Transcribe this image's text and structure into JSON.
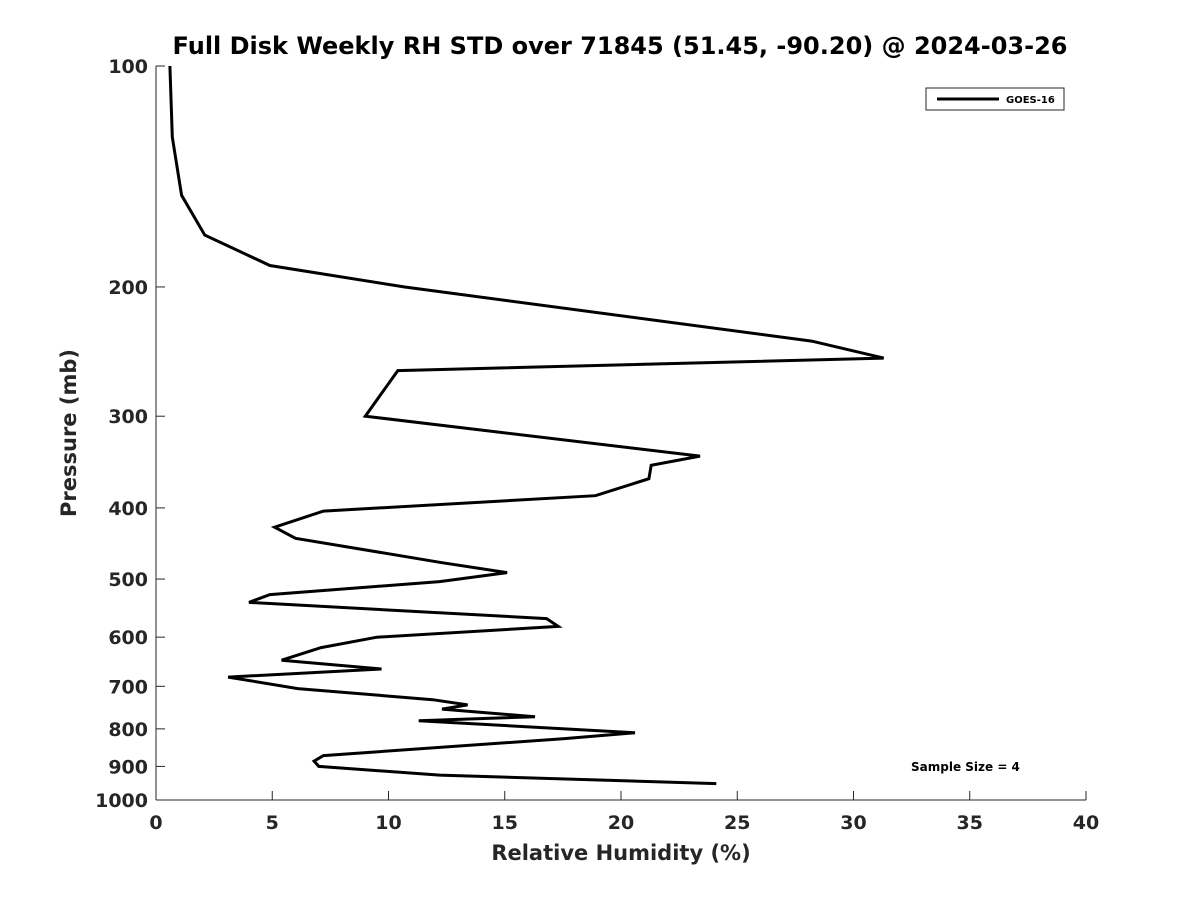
{
  "chart_data": {
    "type": "line",
    "title": "Full Disk Weekly RH STD over 71845 (51.45, -90.20) @ 2024-03-26",
    "xlabel": "Relative Humidity (%)",
    "ylabel": "Pressure (mb)",
    "xlim": [
      0,
      40
    ],
    "ylim": [
      100,
      1000
    ],
    "y_scale": "log",
    "y_reversed": true,
    "x_ticks": [
      "0",
      "5",
      "10",
      "15",
      "20",
      "25",
      "30",
      "35",
      "40"
    ],
    "y_ticks": [
      "100",
      "200",
      "300",
      "400",
      "500",
      "600",
      "700",
      "800",
      "900",
      "1000"
    ],
    "grid": false,
    "legend": {
      "placement": "top-right",
      "entries": [
        "GOES-16"
      ]
    },
    "annotation": "Sample Size = 4",
    "series": [
      {
        "name": "GOES-16",
        "color": "#000000",
        "points": [
          [
            0.6,
            100
          ],
          [
            0.7,
            125
          ],
          [
            1.1,
            150
          ],
          [
            2.1,
            170
          ],
          [
            4.9,
            187
          ],
          [
            10.7,
            200
          ],
          [
            28.2,
            237
          ],
          [
            31.3,
            250
          ],
          [
            10.4,
            260
          ],
          [
            9.0,
            300
          ],
          [
            23.4,
            340
          ],
          [
            21.3,
            350
          ],
          [
            21.2,
            365
          ],
          [
            18.9,
            385
          ],
          [
            7.2,
            404
          ],
          [
            5.1,
            425
          ],
          [
            6.0,
            440
          ],
          [
            12.3,
            475
          ],
          [
            15.1,
            490
          ],
          [
            12.2,
            504
          ],
          [
            4.9,
            525
          ],
          [
            4.0,
            538
          ],
          [
            16.8,
            566
          ],
          [
            17.3,
            580
          ],
          [
            9.5,
            600
          ],
          [
            7.1,
            620
          ],
          [
            5.4,
            645
          ],
          [
            9.7,
            663
          ],
          [
            3.1,
            680
          ],
          [
            6.1,
            705
          ],
          [
            11.9,
            730
          ],
          [
            13.4,
            742
          ],
          [
            12.3,
            752
          ],
          [
            16.3,
            770
          ],
          [
            11.3,
            780
          ],
          [
            20.6,
            810
          ],
          [
            17.5,
            825
          ],
          [
            7.2,
            870
          ],
          [
            6.8,
            885
          ],
          [
            7.0,
            900
          ],
          [
            12.2,
            925
          ],
          [
            24.1,
            950
          ]
        ]
      }
    ]
  }
}
